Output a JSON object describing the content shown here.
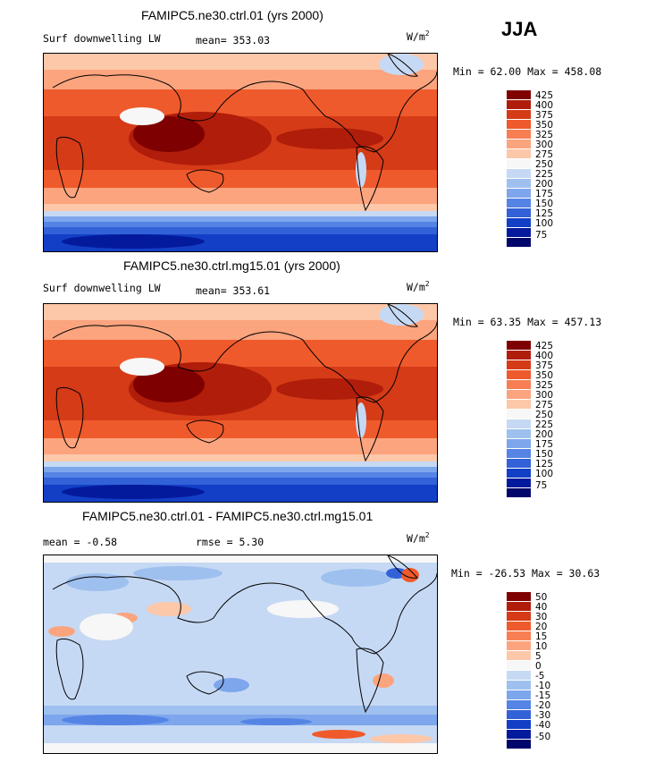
{
  "season": "JJA",
  "chart_data": [
    {
      "type": "heatmap",
      "title": "FAMIPC5.ne30.ctrl.01 (yrs 2000)",
      "variable": "Surf downwelling LW",
      "units": "W/m",
      "units_exp": "2",
      "stat_text": "mean=  353.03",
      "minmax_text": "Min =   62.00 Max = 458.08",
      "min": 62.0,
      "max": 458.08,
      "mean": 353.03,
      "colorbar_levels": [
        "425",
        "400",
        "375",
        "350",
        "325",
        "300",
        "275",
        "250",
        "225",
        "200",
        "175",
        "150",
        "125",
        "100",
        "75"
      ],
      "colorbar_colors": [
        "#7f0000",
        "#b01d0a",
        "#d53b17",
        "#ef5a2c",
        "#f77f53",
        "#fba47e",
        "#fdc7a9",
        "#f7f7f7",
        "#c6d9f4",
        "#9ec0ee",
        "#7ea6ec",
        "#5584e5",
        "#3261d8",
        "#123fc6",
        "#041a9c",
        "#01066b"
      ]
    },
    {
      "type": "heatmap",
      "title": "FAMIPC5.ne30.ctrl.mg15.01 (yrs 2000)",
      "variable": "Surf downwelling LW",
      "units": "W/m",
      "units_exp": "2",
      "stat_text": "mean=  353.61",
      "minmax_text": "Min =   63.35 Max = 457.13",
      "min": 63.35,
      "max": 457.13,
      "mean": 353.61,
      "colorbar_levels": [
        "425",
        "400",
        "375",
        "350",
        "325",
        "300",
        "275",
        "250",
        "225",
        "200",
        "175",
        "150",
        "125",
        "100",
        "75"
      ],
      "colorbar_colors": [
        "#7f0000",
        "#b01d0a",
        "#d53b17",
        "#ef5a2c",
        "#f77f53",
        "#fba47e",
        "#fdc7a9",
        "#f7f7f7",
        "#c6d9f4",
        "#9ec0ee",
        "#7ea6ec",
        "#5584e5",
        "#3261d8",
        "#123fc6",
        "#041a9c",
        "#01066b"
      ]
    },
    {
      "type": "heatmap",
      "title": "FAMIPC5.ne30.ctrl.01 - FAMIPC5.ne30.ctrl.mg15.01",
      "mean_text": "mean =   -0.58",
      "rmse_text": "rmse =    5.30",
      "units": "W/m",
      "units_exp": "2",
      "minmax_text": "Min = -26.53 Max =  30.63",
      "min": -26.53,
      "max": 30.63,
      "mean": -0.58,
      "rmse": 5.3,
      "colorbar_levels": [
        "50",
        "40",
        "30",
        "20",
        "15",
        "10",
        "5",
        "0",
        "-5",
        "-10",
        "-15",
        "-20",
        "-30",
        "-40",
        "-50"
      ],
      "colorbar_colors": [
        "#7f0000",
        "#b01d0a",
        "#d53b17",
        "#ef5a2c",
        "#f77f53",
        "#fba47e",
        "#fdc7a9",
        "#f7f7f7",
        "#c6d9f4",
        "#9ec0ee",
        "#7ea6ec",
        "#5584e5",
        "#3261d8",
        "#123fc6",
        "#041a9c",
        "#01066b"
      ]
    }
  ]
}
